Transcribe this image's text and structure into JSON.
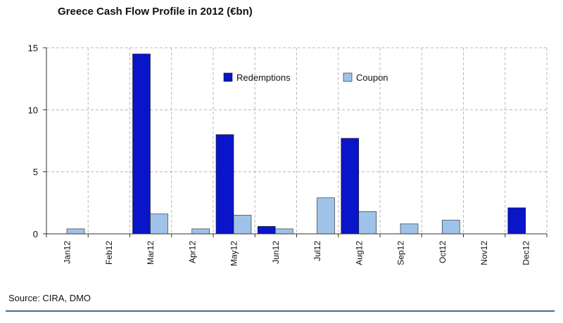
{
  "chart_data": {
    "type": "bar",
    "title": "Greece Cash Flow Profile in 2012 (€bn)",
    "categories": [
      "Jan12",
      "Feb12",
      "Mar12",
      "Apr12",
      "May12",
      "Jun12",
      "Jul12",
      "Aug12",
      "Sep12",
      "Oct12",
      "Nov12",
      "Dec12"
    ],
    "series": [
      {
        "name": "Redemptions",
        "color": "#0a14c8",
        "values": [
          0,
          0,
          14.5,
          0,
          8.0,
          0.6,
          0,
          7.7,
          0,
          0,
          0,
          2.1
        ]
      },
      {
        "name": "Coupon",
        "color": "#9fc3e8",
        "values": [
          0.4,
          0,
          1.6,
          0.4,
          1.5,
          0.4,
          2.9,
          1.8,
          0.8,
          1.1,
          0,
          0
        ]
      }
    ],
    "ylim": [
      0,
      15
    ],
    "yticks": [
      0,
      5,
      10,
      15
    ],
    "grid": true,
    "legend": "top-center"
  },
  "source": "Source: CIRA, DMO"
}
